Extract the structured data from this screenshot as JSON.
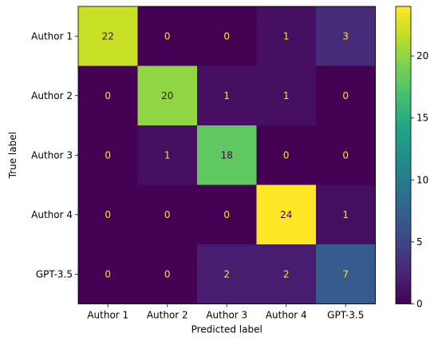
{
  "chart_data": {
    "type": "heatmap",
    "title": "",
    "xlabel": "Predicted label",
    "ylabel": "True label",
    "x_categories": [
      "Author 1",
      "Author 2",
      "Author 3",
      "Author 4",
      "GPT-3.5"
    ],
    "y_categories": [
      "Author 1",
      "Author 2",
      "Author 3",
      "Author 4",
      "GPT-3.5"
    ],
    "matrix": [
      [
        22,
        0,
        0,
        1,
        3
      ],
      [
        0,
        20,
        1,
        1,
        0
      ],
      [
        0,
        1,
        18,
        0,
        0
      ],
      [
        0,
        0,
        0,
        24,
        1
      ],
      [
        0,
        0,
        2,
        2,
        7
      ]
    ],
    "colormap": "viridis",
    "colorbar": {
      "range": [
        0,
        24
      ],
      "ticks": [
        0,
        5,
        10,
        15,
        20
      ]
    },
    "grid": false,
    "text_colors": {
      "on_dark": "#fde725",
      "on_light": "#440154"
    }
  }
}
